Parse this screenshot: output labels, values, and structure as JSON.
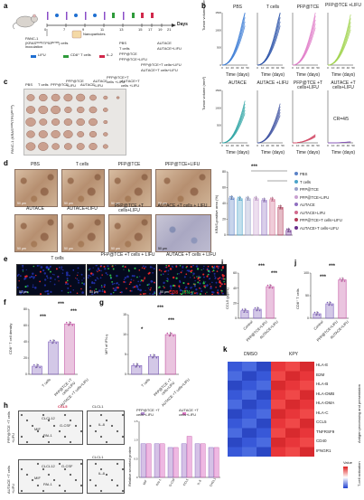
{
  "panels": {
    "a": "a",
    "b": "b",
    "c": "c",
    "d": "d",
    "e": "e",
    "f": "f",
    "g": "g",
    "h": "h",
    "i": "i",
    "j": "j",
    "k": "k"
  },
  "panel_a": {
    "days_label": "Days",
    "days": [
      "0",
      "7",
      "9",
      "11",
      "13",
      "15",
      "17",
      "19",
      "21"
    ],
    "mouse_text": "PANC-1 (KRASᴳ¹²ᴰ/TP53ᴿ²⁷³ᴴ) cells inoculation",
    "nanoparticles": "Nanoparticles",
    "legend": [
      {
        "label": "LIFU",
        "color": "#1f6fd1"
      },
      {
        "label": "CD8⁺ T cells",
        "color": "#2e9b3a"
      },
      {
        "label": "IL-2",
        "color": "#d1284b"
      }
    ],
    "groups": [
      "PBS",
      "T cells",
      "PFP@TCE",
      "PFP@TCE+LIFU",
      "AUTACE",
      "AUTACE+LIFU",
      "PFP@TCE+T cells+LIFU",
      "AUTACE+T cells+LIFU"
    ]
  },
  "panel_b": {
    "ylabel": "Tumor volume (mm³)",
    "xlabel": "Time (days)",
    "yticks": [
      "0",
      "500",
      "1000",
      "1500"
    ],
    "xticks": [
      "0",
      "10",
      "20",
      "30",
      "40",
      "50"
    ],
    "plots": [
      {
        "title": "PBS",
        "color": "#3a7bd5"
      },
      {
        "title": "T cells",
        "color": "#2a52a8"
      },
      {
        "title": "PFP@TCE",
        "color": "#e07ac8"
      },
      {
        "title": "PFP@TCE +LIFU",
        "color": "#9fd34a"
      },
      {
        "title": "AUTACE",
        "color": "#2aa3a3"
      },
      {
        "title": "AUTACE +LIFU",
        "color": "#3b4fa0"
      },
      {
        "title": "PFP@TCE +T cells+LIFU",
        "color": "#d4506b"
      },
      {
        "title": "AUTACE +T cells+LIFU",
        "color": "#8a5ab8"
      }
    ],
    "cr_label": "CR=4/5"
  },
  "panel_c": {
    "ylabel": "PANC-1 (KRASᴳ¹²ᴰ/TP53ᴿ²⁷³ᴴ)",
    "columns": [
      "PBS",
      "T cells",
      "PFP@TCE",
      "PFP@TCE +LIFU",
      "AUTACE",
      "AUTACE +LIFU",
      "PFP@TCE+T cells +LIFU",
      "AUTACE+T cells +LIFU"
    ]
  },
  "panel_d": {
    "row1": [
      "PBS",
      "T cells",
      "PFP@TCE",
      "PFP@TCE+LIFU"
    ],
    "row2": [
      "AUTACE",
      "AUTACE+LIFU",
      "PFP@TCE +T cells+LIFU",
      "AUTACE +T cells + LIFU"
    ],
    "scale": "50 μm",
    "ylabel": "KRAS-positive area (%)",
    "yticks": [
      "0",
      "20",
      "40",
      "60",
      "80"
    ],
    "stars": "***",
    "legend": [
      {
        "label": "PBS",
        "color": "#5b82c7"
      },
      {
        "label": "T cells",
        "color": "#4aa3c9"
      },
      {
        "label": "PFP@TCE",
        "color": "#9aa0c8"
      },
      {
        "label": "PFP@TCE+LIFU",
        "color": "#c8a0d0"
      },
      {
        "label": "AUTACE",
        "color": "#8f6fc0"
      },
      {
        "label": "AUTACE+LIFU",
        "color": "#d26a8e"
      },
      {
        "label": "PFP@TCE+T cells+LIFU",
        "color": "#b23a58"
      },
      {
        "label": "AUTACE+T cells+LIFU",
        "color": "#6a2f8c"
      }
    ]
  },
  "panel_e": {
    "titles": [
      "T cells",
      "PFP@TCE +T cells + LIFU",
      "AUTACE +T cells + LIFU"
    ],
    "scale": "50 μm",
    "legend_cd8": "CD8",
    "legend_ifn": "IFN-γ"
  },
  "panel_f": {
    "ylabel": "CD8⁺ T cell density",
    "yticks": [
      "0",
      "20",
      "40",
      "60",
      "80"
    ],
    "categories": [
      "T cells",
      "PFP@TCE +T cells+LIFU",
      "AUTACE +T cells+LIFU"
    ],
    "stars": "***"
  },
  "panel_g": {
    "ylabel": "MFI of IFN-γ",
    "yticks": [
      "0",
      "5",
      "10",
      "15"
    ],
    "categories": [
      "T cells",
      "PFP@TCE +T cells+LIFU",
      "AUTACE +T cells+LIFU"
    ],
    "stars_small": "*",
    "stars": "***"
  },
  "panel_h": {
    "row1": "PFP@TCE +T cells +LIFU",
    "row2": "AUTACE +T cells +LIFU",
    "labels1": [
      "CCL5",
      "CLCL1",
      "CLCL12",
      "IL-8",
      "G-CSF",
      "MIF",
      "PAI-1"
    ],
    "labels2": [
      "CLCL12",
      "G-CSF",
      "CLCL1",
      "IL-8",
      "MIF",
      "PAI-1"
    ],
    "legend": [
      "PFP@TCE +T cells+LIFU",
      "AUTACE +T cells+LIFU"
    ],
    "ylabel": "Relative secreted protein",
    "categories": [
      "MIF",
      "PAI-1",
      "G-CSF",
      "CCL5",
      "IL-8",
      "CXCL1"
    ]
  },
  "panel_i": {
    "ylabel": "CCL5 (pg/ml)",
    "categories": [
      "Control",
      "PFP@TCE+LIFU",
      "AUTACE+LIFU"
    ],
    "stars": "***"
  },
  "panel_j": {
    "ylabel": "CD8⁺ T cells",
    "categories": [
      "Control",
      "PFP@TCE+LIFU",
      "AUTACE+LIFU"
    ],
    "stars": "***"
  },
  "panel_k": {
    "groups": [
      "DMSO",
      "KPY"
    ],
    "genes": [
      "HLA-E",
      "B2M",
      "HLA-B",
      "HLA-DMB",
      "HLA-DMA",
      "HLA-C",
      "CCL5",
      "TNFRSF9",
      "CD40",
      "IFNGR1"
    ],
    "section1": "Antigen processing and presentation",
    "section2": "T-cell activation",
    "scale_title": "Value",
    "scale_ticks": [
      "1",
      "0.5",
      "0",
      "-0.5",
      "-1"
    ]
  },
  "chart_data": [
    {
      "type": "bar",
      "panel": "d",
      "ylabel": "KRAS-positive area (%)",
      "categories": [
        "PBS",
        "T cells",
        "PFP@TCE",
        "PFP@TCE+LIFU",
        "AUTACE",
        "AUTACE+LIFU",
        "PFP@TCE+T cells+LIFU",
        "AUTACE+T cells+LIFU"
      ],
      "values": [
        47,
        46,
        46,
        46,
        44,
        45,
        35,
        6
      ],
      "ylim": [
        0,
        80
      ]
    },
    {
      "type": "bar",
      "panel": "f",
      "ylabel": "CD8⁺ T cell density",
      "categories": [
        "T cells",
        "PFP@TCE +T cells+LIFU",
        "AUTACE +T cells+LIFU"
      ],
      "values": [
        10,
        40,
        62
      ],
      "ylim": [
        0,
        80
      ]
    },
    {
      "type": "bar",
      "panel": "g",
      "ylabel": "MFI of IFN-γ",
      "categories": [
        "T cells",
        "PFP@TCE +T cells+LIFU",
        "AUTACE +T cells+LIFU"
      ],
      "values": [
        2.2,
        4.5,
        10
      ],
      "ylim": [
        0,
        15
      ]
    },
    {
      "type": "bar",
      "panel": "i",
      "ylabel": "CCL5 (pg/ml)",
      "categories": [
        "Control",
        "PFP@TCE+LIFU",
        "AUTACE+LIFU"
      ],
      "values": [
        10,
        12,
        42
      ],
      "ylim": [
        0,
        60
      ]
    },
    {
      "type": "bar",
      "panel": "j",
      "ylabel": "CD8⁺ T cells",
      "categories": [
        "Control",
        "PFP@TCE+LIFU",
        "AUTACE+LIFU"
      ],
      "values": [
        10,
        32,
        85
      ],
      "ylim": [
        0,
        100
      ]
    },
    {
      "type": "bar",
      "panel": "h",
      "ylabel": "Relative secreted protein",
      "categories": [
        "MIF",
        "PAI-1",
        "G-CSF",
        "CCL5",
        "IL-8",
        "CXCL1"
      ],
      "series": [
        {
          "name": "PFP@TCE +T cells+LIFU",
          "values": [
            0.9,
            0.9,
            0.8,
            0.9,
            0.9,
            0.8
          ]
        },
        {
          "name": "AUTACE +T cells+LIFU",
          "values": [
            0.9,
            0.9,
            0.8,
            1.1,
            0.9,
            0.8
          ]
        }
      ]
    },
    {
      "type": "heatmap",
      "panel": "k",
      "rows": [
        "HLA-E",
        "B2M",
        "HLA-B",
        "HLA-DMB",
        "HLA-DMA",
        "HLA-C",
        "CCL5",
        "TNFRSF9",
        "CD40",
        "IFNGR1"
      ],
      "columns": [
        "DMSO",
        "KPY"
      ],
      "values": [
        [
          -1,
          -1,
          -1,
          1,
          1,
          1
        ],
        [
          -1,
          -1,
          -1,
          1,
          1,
          1
        ],
        [
          -1,
          -1,
          -1,
          1,
          1,
          1
        ],
        [
          -1,
          -1,
          -1,
          1,
          1,
          1
        ],
        [
          -1,
          -1,
          -1,
          1,
          1,
          1
        ],
        [
          -1,
          -1,
          -1,
          1,
          1,
          1
        ],
        [
          -1,
          -1,
          -1,
          1,
          1,
          1
        ],
        [
          -1,
          -1,
          -1,
          1,
          1,
          1
        ],
        [
          -1,
          -1,
          -1,
          1,
          1,
          1
        ],
        [
          -1,
          -1,
          -1,
          1,
          1,
          1
        ]
      ]
    }
  ]
}
